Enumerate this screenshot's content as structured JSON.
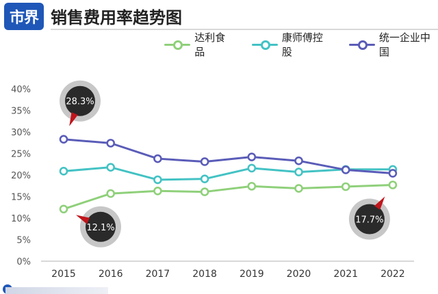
{
  "header": {
    "logo_text": "市界",
    "title": "销售费用率趋势图"
  },
  "colors": {
    "logo_bg": "#1f57b8",
    "series": [
      "#8fd07a",
      "#43c2c4",
      "#5a5cb8"
    ],
    "callout_bubble": "#2a2a2a",
    "callout_ring": "#bdbdbd",
    "callout_pointer": "#c0161c"
  },
  "chart_data": {
    "type": "line",
    "title": "销售费用率趋势图",
    "xlabel": "",
    "ylabel": "",
    "x": [
      "2015",
      "2016",
      "2017",
      "2018",
      "2019",
      "2020",
      "2021",
      "2022"
    ],
    "ylim": [
      0,
      40
    ],
    "yticks": [
      "0%",
      "5%",
      "10%",
      "15%",
      "20%",
      "25%",
      "30%",
      "35%",
      "40%"
    ],
    "grid": false,
    "legend_position": "top-right",
    "series": [
      {
        "name": "达利食品",
        "values": [
          12.1,
          15.7,
          16.3,
          16.1,
          17.4,
          16.9,
          17.3,
          17.7
        ]
      },
      {
        "name": "康师傅控股",
        "values": [
          20.9,
          21.8,
          18.9,
          19.1,
          21.6,
          20.7,
          21.3,
          21.3
        ]
      },
      {
        "name": "统一企业中国",
        "values": [
          28.3,
          27.4,
          23.8,
          23.1,
          24.2,
          23.3,
          21.2,
          20.4
        ]
      }
    ],
    "annotations": [
      {
        "text": "28.3%",
        "series": 2,
        "index": 0
      },
      {
        "text": "12.1%",
        "series": 0,
        "index": 0
      },
      {
        "text": "17.7%",
        "series": 0,
        "index": 7
      }
    ]
  }
}
